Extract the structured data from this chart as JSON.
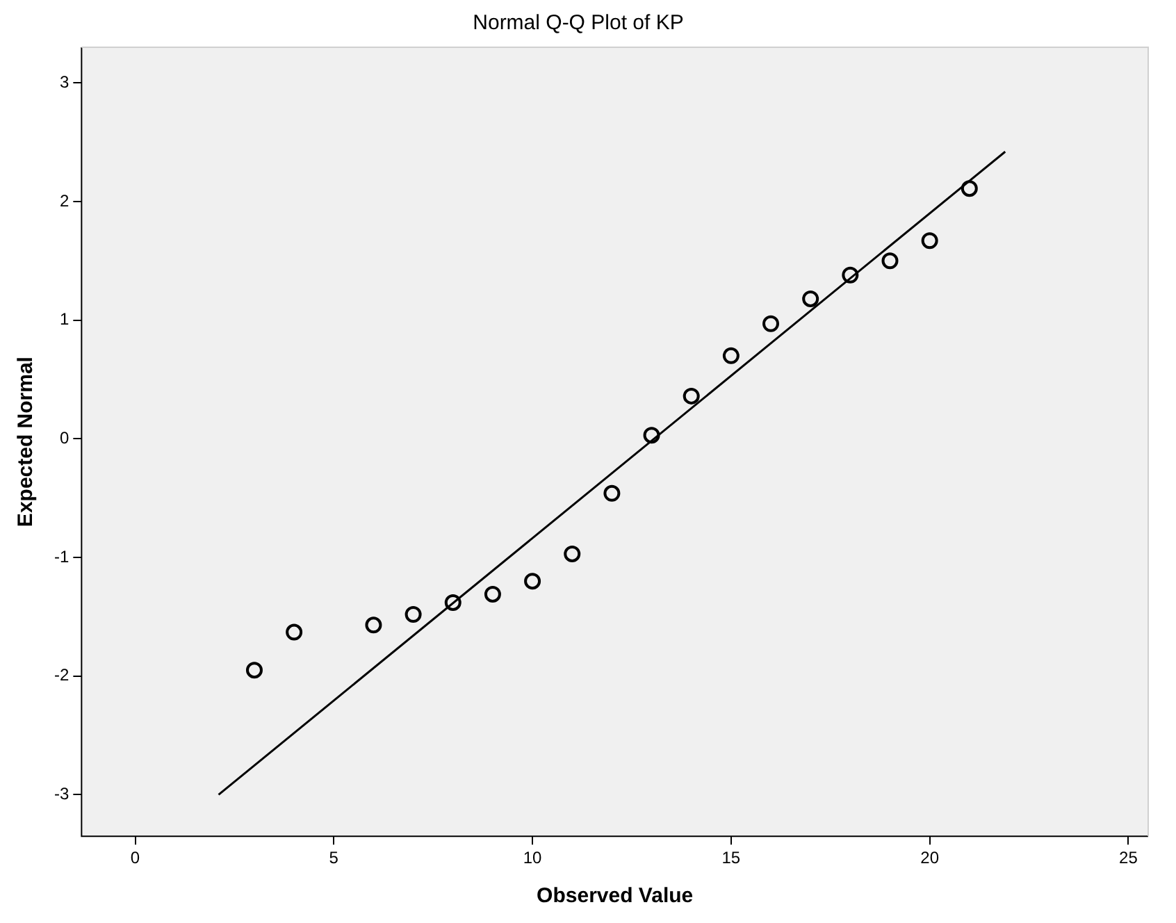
{
  "chart_data": {
    "type": "scatter",
    "title": "Normal Q-Q Plot of KP",
    "xlabel": "Observed Value",
    "ylabel": "Expected Normal",
    "series": [
      {
        "color": "#000000",
        "marker": "circle",
        "x": [
          3,
          4,
          6,
          7,
          8,
          9,
          10,
          11,
          12,
          13,
          14,
          15,
          16,
          17,
          18,
          19,
          20,
          21
        ],
        "values": [
          -1.95,
          -1.63,
          -1.57,
          -1.48,
          -1.38,
          -1.31,
          -1.2,
          -0.97,
          -0.46,
          0.03,
          0.36,
          0.7,
          0.97,
          1.18,
          1.38,
          1.5,
          1.67,
          2.11
        ]
      },
      {
        "type": "line",
        "marker": "none",
        "color": "#000000",
        "x": [
          2.1,
          21.9
        ],
        "values": [
          -3,
          2.42
        ]
      }
    ],
    "xlim": [
      -1.35,
      25.5
    ],
    "xticks": [
      0,
      5,
      10,
      15,
      20,
      25
    ],
    "ylim": [
      -3.35,
      3.3
    ],
    "yticks": [
      -3,
      -2,
      -1,
      0,
      1,
      2,
      3
    ],
    "grid": false,
    "legend": false
  }
}
